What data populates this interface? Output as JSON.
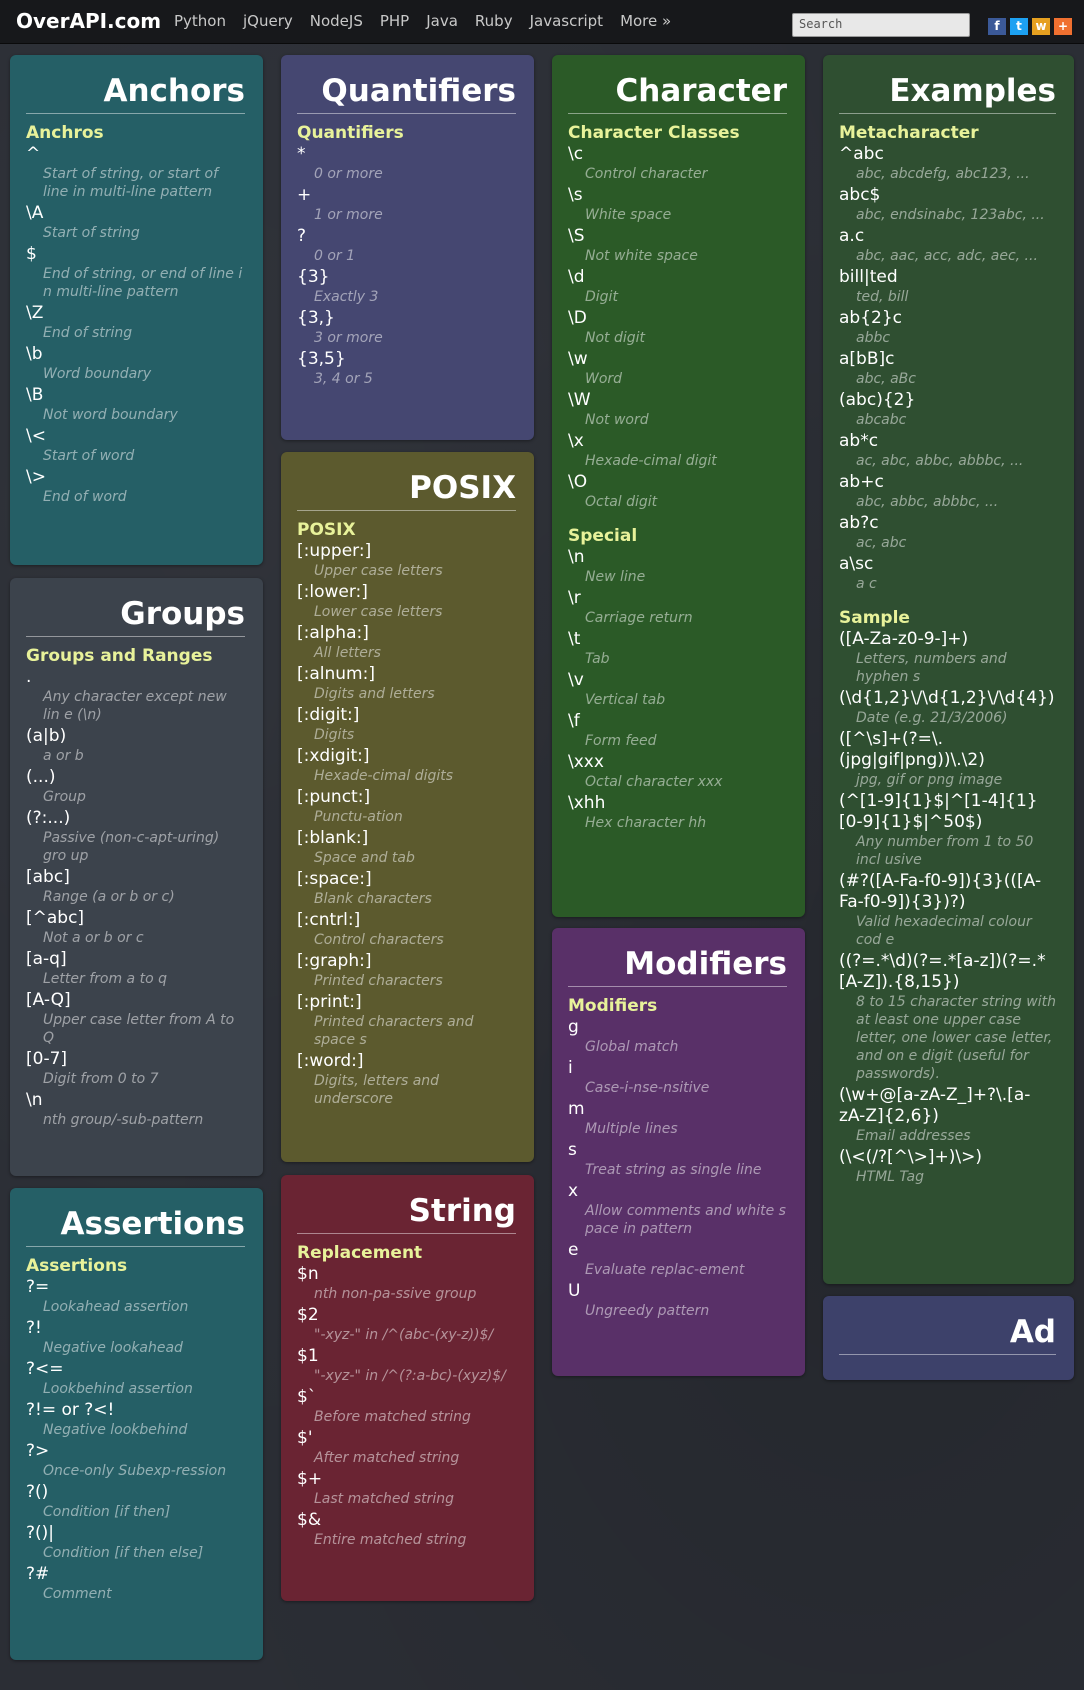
{
  "header": {
    "logo": "OverAPI.com",
    "nav": [
      "Python",
      "jQuery",
      "NodeJS",
      "PHP",
      "Java",
      "Ruby",
      "Javascript",
      "More »"
    ],
    "search_placeholder": "Search",
    "social": [
      {
        "icon": "facebook-icon",
        "glyph": "f",
        "color": "#3b5998"
      },
      {
        "icon": "twitter-icon",
        "glyph": "t",
        "color": "#1da1f2"
      },
      {
        "icon": "weibo-icon",
        "glyph": "w",
        "color": "#e6a020"
      },
      {
        "icon": "share-plus-icon",
        "glyph": "+",
        "color": "#f07030"
      }
    ]
  },
  "cards": {
    "anchors": {
      "title": "Anchors",
      "sections": [
        {
          "heading": "Anchros",
          "items": [
            {
              "code": "^",
              "desc": "Start of string, or start of line in multi-line pattern"
            },
            {
              "code": "\\A",
              "desc": "Start of string"
            },
            {
              "code": "$",
              "desc": "End of string, or end of line i n multi-line pattern"
            },
            {
              "code": "\\Z",
              "desc": "End of string"
            },
            {
              "code": "\\b",
              "desc": "Word boundary"
            },
            {
              "code": "\\B",
              "desc": "Not word boundary"
            },
            {
              "code": "\\<",
              "desc": "Start of word"
            },
            {
              "code": "\\>",
              "desc": "End of word"
            }
          ]
        }
      ]
    },
    "groups": {
      "title": "Groups",
      "sections": [
        {
          "heading": "Groups and Ranges",
          "items": [
            {
              "code": ".",
              "desc": "Any character except new lin e (\\n)"
            },
            {
              "code": "(a|b)",
              "desc": "a or b"
            },
            {
              "code": "(...)",
              "desc": "Group"
            },
            {
              "code": "(?:...)",
              "desc": "Passive (non-c-apt-uring) gro up"
            },
            {
              "code": "[abc]",
              "desc": "Range (a or b or c)"
            },
            {
              "code": "[^abc]",
              "desc": "Not a or b or c"
            },
            {
              "code": "[a-q]",
              "desc": "Letter from a to q"
            },
            {
              "code": "[A-Q]",
              "desc": "Upper case letter from A to Q"
            },
            {
              "code": "[0-7]",
              "desc": "Digit from 0 to 7"
            },
            {
              "code": "\\n",
              "desc": "nth group/-sub-pattern"
            }
          ]
        }
      ]
    },
    "assertions": {
      "title": "Assertions",
      "sections": [
        {
          "heading": "Assertions",
          "items": [
            {
              "code": "?=",
              "desc": "Lookahead assertion"
            },
            {
              "code": "?!",
              "desc": "Negative lookahead"
            },
            {
              "code": "?<=",
              "desc": "Lookbehind assertion"
            },
            {
              "code": "?!= or ?<!",
              "desc": "Negative lookbehind"
            },
            {
              "code": "?>",
              "desc": "Once-only Subexp-ression"
            },
            {
              "code": "?()",
              "desc": "Condition [if then]"
            },
            {
              "code": "?()|",
              "desc": "Condition [if then else]"
            },
            {
              "code": "?#",
              "desc": "Comment"
            }
          ]
        }
      ]
    },
    "quantifiers": {
      "title": "Quantifiers",
      "sections": [
        {
          "heading": "Quantifiers",
          "items": [
            {
              "code": "*",
              "desc": "0 or more"
            },
            {
              "code": "+",
              "desc": "1 or more"
            },
            {
              "code": "?",
              "desc": "0 or 1"
            },
            {
              "code": "{3}",
              "desc": "Exactly 3"
            },
            {
              "code": "{3,}",
              "desc": "3 or more"
            },
            {
              "code": "{3,5}",
              "desc": "3, 4 or 5"
            }
          ]
        }
      ]
    },
    "posix": {
      "title": "POSIX",
      "sections": [
        {
          "heading": "POSIX",
          "items": [
            {
              "code": "[:upper:]",
              "desc": "Upper case letters"
            },
            {
              "code": "[:lower:]",
              "desc": "Lower case letters"
            },
            {
              "code": "[:alpha:]",
              "desc": "All letters"
            },
            {
              "code": "[:alnum:]",
              "desc": "Digits and letters"
            },
            {
              "code": "[:digit:]",
              "desc": "Digits"
            },
            {
              "code": "[:xdigit:]",
              "desc": "Hexade-cimal digits"
            },
            {
              "code": "[:punct:]",
              "desc": "Punctu-ation"
            },
            {
              "code": "[:blank:]",
              "desc": "Space and tab"
            },
            {
              "code": "[:space:]",
              "desc": "Blank characters"
            },
            {
              "code": "[:cntrl:]",
              "desc": "Control characters"
            },
            {
              "code": "[:graph:]",
              "desc": "Printed characters"
            },
            {
              "code": "[:print:]",
              "desc": "Printed characters and space s"
            },
            {
              "code": "[:word:]",
              "desc": "Digits, letters and underscore"
            }
          ]
        }
      ]
    },
    "string": {
      "title": "String",
      "sections": [
        {
          "heading": "Replacement",
          "items": [
            {
              "code": "$n",
              "desc": "nth non-pa-ssive group"
            },
            {
              "code": "$2",
              "desc": "\"-xyz-\" in /^(abc-(xy-z))$/"
            },
            {
              "code": "$1",
              "desc": "\"-xyz-\" in /^(?:a-bc)-(xyz)$/"
            },
            {
              "code": "$`",
              "desc": "Before matched string"
            },
            {
              "code": "$'",
              "desc": "After matched string"
            },
            {
              "code": "$+",
              "desc": "Last matched string"
            },
            {
              "code": "$&",
              "desc": "Entire matched string"
            }
          ]
        }
      ]
    },
    "character": {
      "title": "Character",
      "sections": [
        {
          "heading": "Character Classes",
          "items": [
            {
              "code": "\\c",
              "desc": "Control character"
            },
            {
              "code": "\\s",
              "desc": "White space"
            },
            {
              "code": "\\S",
              "desc": "Not white space"
            },
            {
              "code": "\\d",
              "desc": "Digit"
            },
            {
              "code": "\\D",
              "desc": "Not digit"
            },
            {
              "code": "\\w",
              "desc": "Word"
            },
            {
              "code": "\\W",
              "desc": "Not word"
            },
            {
              "code": "\\x",
              "desc": "Hexade-cimal digit"
            },
            {
              "code": "\\O",
              "desc": "Octal digit"
            }
          ]
        },
        {
          "heading": "Special",
          "items": [
            {
              "code": "\\n",
              "desc": "New line"
            },
            {
              "code": "\\r",
              "desc": "Carriage return"
            },
            {
              "code": "\\t",
              "desc": "Tab"
            },
            {
              "code": "\\v",
              "desc": "Vertical tab"
            },
            {
              "code": "\\f",
              "desc": "Form feed"
            },
            {
              "code": "\\xxx",
              "desc": "Octal character xxx"
            },
            {
              "code": "\\xhh",
              "desc": "Hex character hh"
            }
          ]
        }
      ]
    },
    "modifiers": {
      "title": "Modifiers",
      "sections": [
        {
          "heading": "Modifiers",
          "items": [
            {
              "code": "g",
              "desc": "Global match"
            },
            {
              "code": "i",
              "desc": "Case-i-nse-nsitive"
            },
            {
              "code": "m",
              "desc": "Multiple lines"
            },
            {
              "code": "s",
              "desc": "Treat string as single line"
            },
            {
              "code": "x",
              "desc": "Allow comments and white s pace in pattern"
            },
            {
              "code": "e",
              "desc": "Evaluate replac-ement"
            },
            {
              "code": "U",
              "desc": "Ungreedy pattern"
            }
          ]
        }
      ]
    },
    "examples": {
      "title": "Examples",
      "sections": [
        {
          "heading": "Metacharacter",
          "items": [
            {
              "code": "^abc",
              "desc": "abc, abcdefg, abc123, ..."
            },
            {
              "code": "abc$",
              "desc": "abc, endsinabc, 123abc, ..."
            },
            {
              "code": "a.c",
              "desc": "abc, aac, acc, adc, aec, ..."
            },
            {
              "code": "bill|ted",
              "desc": "ted, bill"
            },
            {
              "code": "ab{2}c",
              "desc": "abbc"
            },
            {
              "code": "a[bB]c",
              "desc": "abc, aBc"
            },
            {
              "code": "(abc){2}",
              "desc": "abcabc"
            },
            {
              "code": "ab*c",
              "desc": "ac, abc, abbc, abbbc, ..."
            },
            {
              "code": "ab+c",
              "desc": "abc, abbc, abbbc, ..."
            },
            {
              "code": "ab?c",
              "desc": "ac, abc"
            },
            {
              "code": "a\\sc",
              "desc": "a c"
            }
          ]
        },
        {
          "heading": "Sample",
          "items": [
            {
              "code": "([A-Za-z0-9-]+)",
              "desc": "Letters, numbers and hyphen s"
            },
            {
              "code": "(\\d{1,2}\\/\\d{1,2}\\/\\d{4})",
              "desc": "Date (e.g. 21/3/2006)"
            },
            {
              "code": "([^\\s]+(?=\\.(jpg|gif|png))\\.\\2)",
              "desc": "jpg, gif or png image"
            },
            {
              "code": "(^[1-9]{1}$|^[1-4]{1}[0-9]{1}$|^50$)",
              "desc": "Any number from 1 to 50 incl usive"
            },
            {
              "code": "(#?([A-Fa-f0-9]){3}(([A-Fa-f0-9]){3})?)",
              "desc": "Valid hexadecimal colour cod e"
            },
            {
              "code": "((?=.*\\d)(?=.*[a-z])(?=.*[A-Z]).{8,15})",
              "desc": "8 to 15 character string with at least one upper case letter, one lower case letter, and on e digit (useful for passwords)."
            },
            {
              "code": "(\\w+@[a-zA-Z_]+?\\.[a-zA-Z]{2,6})",
              "desc": "Email addresses"
            },
            {
              "code": "(\\<(/?[^\\>]+)\\>)",
              "desc": "HTML Tag"
            }
          ]
        }
      ]
    },
    "ad": {
      "title": "Ad",
      "sections": []
    }
  }
}
